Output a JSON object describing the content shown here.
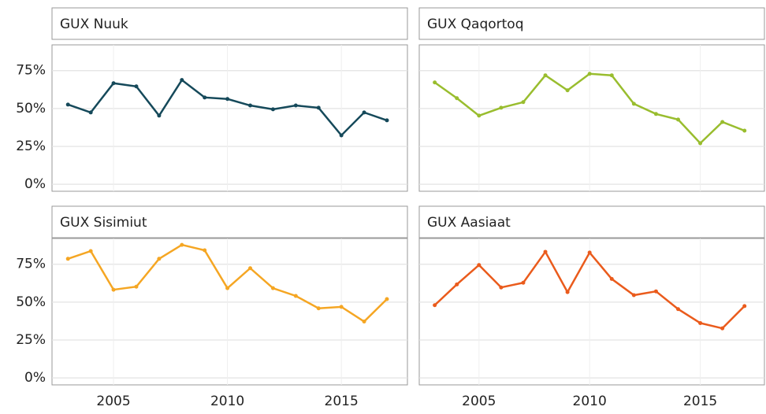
{
  "chart_data": {
    "type": "line",
    "x": [
      2003,
      2004,
      2005,
      2006,
      2007,
      2008,
      2009,
      2010,
      2011,
      2012,
      2013,
      2014,
      2015,
      2016,
      2017
    ],
    "xlim": [
      2002.3,
      2017.9
    ],
    "xticks": [
      2005,
      2010,
      2015
    ],
    "ylim": [
      -4.6,
      92
    ],
    "yticks": [
      {
        "value": 0,
        "label": "0%"
      },
      {
        "value": 25,
        "label": "25%"
      },
      {
        "value": 50,
        "label": "50%"
      },
      {
        "value": 75,
        "label": "75%"
      }
    ],
    "grid": true,
    "panels": [
      {
        "title": "GUX Nuuk",
        "color": "#15495a",
        "values": [
          52.6,
          47.4,
          66.7,
          64.6,
          45.3,
          68.8,
          57.3,
          56.3,
          52,
          49.5,
          52,
          50.5,
          32.3,
          47.4,
          42.2
        ]
      },
      {
        "title": "GUX Qaqortoq",
        "color": "#99bd2e",
        "values": [
          67.2,
          56.8,
          45.3,
          50.5,
          54.2,
          71.9,
          62,
          72.9,
          71.9,
          53.1,
          46.4,
          42.7,
          27.1,
          41.1,
          35.4
        ]
      },
      {
        "title": "GUX Sisimiut",
        "color": "#f5a623",
        "values": [
          78.6,
          83.7,
          58.2,
          60.2,
          78.6,
          87.8,
          84.2,
          59.2,
          72.4,
          59.2,
          54.1,
          45.9,
          46.9,
          37.2,
          52
        ]
      },
      {
        "title": "GUX Aasiaat",
        "color": "#ea5b1c",
        "values": [
          48,
          61.7,
          74.5,
          59.7,
          62.8,
          83.2,
          56.6,
          82.7,
          65.3,
          54.6,
          57.1,
          45.4,
          36.2,
          32.7,
          47.4
        ]
      }
    ]
  }
}
